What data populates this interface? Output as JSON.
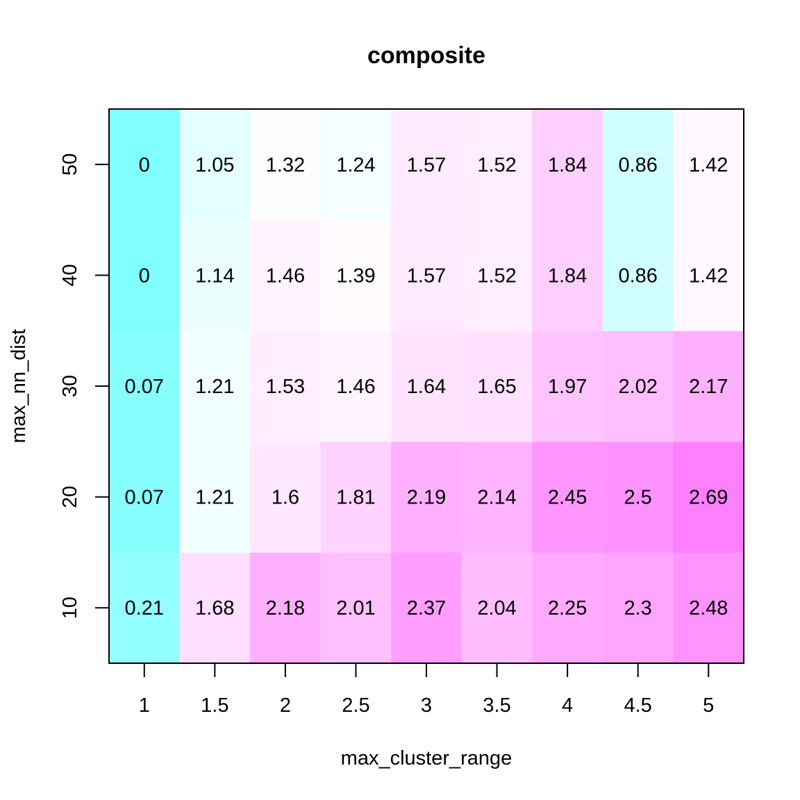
{
  "chart_data": {
    "type": "heatmap",
    "title": "composite",
    "xlabel": "max_cluster_range",
    "ylabel": "max_nn_dist",
    "x": [
      "1",
      "1.5",
      "2",
      "2.5",
      "3",
      "3.5",
      "4",
      "4.5",
      "5"
    ],
    "y": [
      "10",
      "20",
      "30",
      "40",
      "50"
    ],
    "values": [
      [
        "0.21",
        "1.68",
        "2.18",
        "2.01",
        "2.37",
        "2.04",
        "2.25",
        "2.3",
        "2.48"
      ],
      [
        "0.07",
        "1.21",
        "1.6",
        "1.81",
        "2.19",
        "2.14",
        "2.45",
        "2.5",
        "2.69"
      ],
      [
        "0.07",
        "1.21",
        "1.53",
        "1.46",
        "1.64",
        "1.65",
        "1.97",
        "2.02",
        "2.17"
      ],
      [
        "0",
        "1.14",
        "1.46",
        "1.39",
        "1.57",
        "1.52",
        "1.84",
        "0.86",
        "1.42"
      ],
      [
        "0",
        "1.05",
        "1.32",
        "1.24",
        "1.57",
        "1.52",
        "1.84",
        "0.86",
        "1.42"
      ]
    ],
    "colors": {
      "low": "#80ffff",
      "mid": "#ffffff",
      "high": "#ff80ff",
      "frame": "#000000"
    },
    "color_range": [
      0,
      2.69
    ]
  }
}
